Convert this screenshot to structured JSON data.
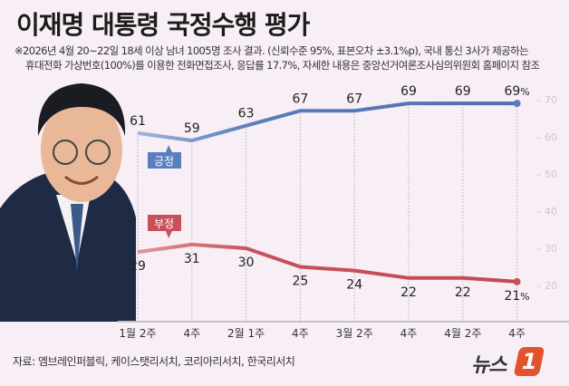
{
  "title": "이재명 대통령 국정수행 평가",
  "notes": [
    "※2026년 4월 20~22일 18세 이상 남녀 1005명 조사 결과. (신뢰수준 95%, 표본오차 ±3.1%p), 국내 통신 3사가 제공하는",
    "휴대전화 가상번호(100%)를 이용한 전화면접조사, 응답률 17.7%, 자세한 내용은 중앙선거여론조사심의위원회 홈페이지 참조"
  ],
  "source": "자료: 엠브레인퍼블릭, 케이스탯리서치, 코리아리서치, 한국리서치",
  "logo": "뉴스1",
  "chart_data": {
    "type": "line",
    "categories": [
      "1월 2주",
      "4주",
      "2월 1주",
      "4주",
      "3월 2주",
      "4주",
      "4월 2주",
      "4주"
    ],
    "series": [
      {
        "name": "긍정",
        "color": "#5a7dbd",
        "values": [
          61,
          59,
          63,
          67,
          67,
          69,
          69,
          69
        ]
      },
      {
        "name": "부정",
        "color": "#c9505a",
        "values": [
          29,
          31,
          30,
          25,
          24,
          22,
          22,
          21
        ]
      }
    ],
    "last_label_suffix": "%",
    "yticks": [
      70,
      60,
      50,
      40,
      30,
      20
    ],
    "ylim": [
      20,
      70
    ],
    "grid": "vertical dotted at each point",
    "axis_position": "right"
  }
}
